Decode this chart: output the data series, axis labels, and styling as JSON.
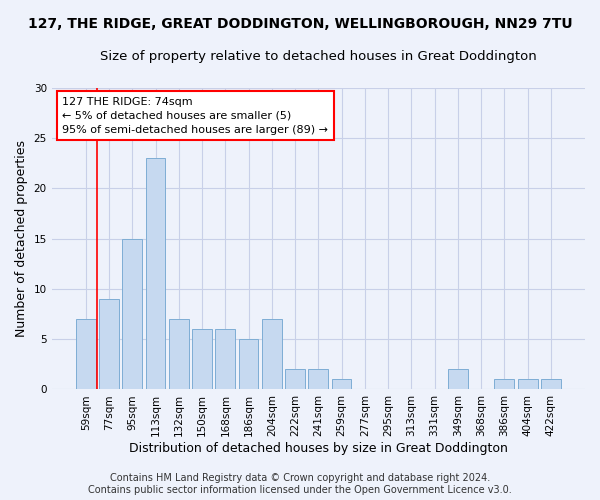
{
  "title_line1": "127, THE RIDGE, GREAT DODDINGTON, WELLINGBOROUGH, NN29 7TU",
  "title_line2": "Size of property relative to detached houses in Great Doddington",
  "xlabel": "Distribution of detached houses by size in Great Doddington",
  "ylabel": "Number of detached properties",
  "categories": [
    "59sqm",
    "77sqm",
    "95sqm",
    "113sqm",
    "132sqm",
    "150sqm",
    "168sqm",
    "186sqm",
    "204sqm",
    "222sqm",
    "241sqm",
    "259sqm",
    "277sqm",
    "295sqm",
    "313sqm",
    "331sqm",
    "349sqm",
    "368sqm",
    "386sqm",
    "404sqm",
    "422sqm"
  ],
  "values": [
    7,
    9,
    15,
    23,
    7,
    6,
    6,
    5,
    7,
    2,
    2,
    1,
    0,
    0,
    0,
    0,
    2,
    0,
    1,
    1,
    1
  ],
  "bar_color": "#c6d9f0",
  "bar_edge_color": "#7eadd4",
  "ylim": [
    0,
    30
  ],
  "yticks": [
    0,
    5,
    10,
    15,
    20,
    25,
    30
  ],
  "annotation_line1": "127 THE RIDGE: 74sqm",
  "annotation_line2": "← 5% of detached houses are smaller (5)",
  "annotation_line3": "95% of semi-detached houses are larger (89) →",
  "vline_x_index": 1,
  "footer_line1": "Contains HM Land Registry data © Crown copyright and database right 2024.",
  "footer_line2": "Contains public sector information licensed under the Open Government Licence v3.0.",
  "background_color": "#eef2fb",
  "plot_background_color": "#eef2fb",
  "grid_color": "#c8d0e8",
  "title_fontsize": 10,
  "subtitle_fontsize": 9.5,
  "axis_label_fontsize": 9,
  "tick_fontsize": 7.5,
  "annotation_fontsize": 8,
  "footer_fontsize": 7
}
